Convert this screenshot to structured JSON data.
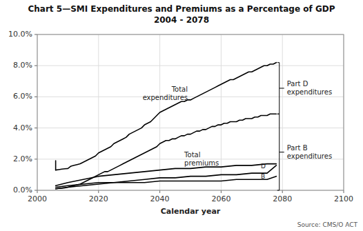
{
  "chart_data": {
    "type": "line",
    "title": "Chart 5—SMI Expenditures and Premiums as a Percentage of GDP",
    "subtitle": "2004 - 2078",
    "xlabel": "Calendar year",
    "source": "Source: CMS/O ACT",
    "xlim": [
      2000,
      2100
    ],
    "ylim": [
      0.0,
      0.1
    ],
    "xticks": [
      2000,
      2020,
      2040,
      2060,
      2080,
      2100
    ],
    "yticks": [
      {
        "value": 0.0,
        "label": "0.0%"
      },
      {
        "value": 0.02,
        "label": "2.0%"
      },
      {
        "value": 0.04,
        "label": "4.0%"
      },
      {
        "value": 0.06,
        "label": "6.0%"
      },
      {
        "value": 0.08,
        "label": "8.0%"
      },
      {
        "value": 0.1,
        "label": "10.0%"
      }
    ],
    "grid": true,
    "series": [
      {
        "color": "#000000",
        "x": [
          2006,
          2007,
          2008,
          2009,
          2010,
          2011,
          2012,
          2013,
          2014,
          2015,
          2016,
          2017,
          2018,
          2019,
          2020,
          2021,
          2022,
          2023,
          2024,
          2025,
          2026,
          2027,
          2028,
          2029,
          2030,
          2031,
          2032,
          2033,
          2034,
          2035,
          2036,
          2037,
          2038,
          2039,
          2040,
          2041,
          2042,
          2043,
          2044,
          2045,
          2046,
          2047,
          2048,
          2049,
          2050,
          2051,
          2052,
          2053,
          2054,
          2055,
          2056,
          2057,
          2058,
          2059,
          2060,
          2061,
          2062,
          2063,
          2064,
          2065,
          2066,
          2067,
          2068,
          2069,
          2070,
          2071,
          2072,
          2073,
          2074,
          2075,
          2076,
          2077,
          2078
        ],
        "values": [
          0.013,
          0.0133,
          0.0136,
          0.0138,
          0.014,
          0.0155,
          0.016,
          0.0165,
          0.017,
          0.018,
          0.019,
          0.02,
          0.021,
          0.022,
          0.024,
          0.025,
          0.026,
          0.027,
          0.028,
          0.03,
          0.031,
          0.032,
          0.033,
          0.034,
          0.036,
          0.037,
          0.038,
          0.039,
          0.04,
          0.042,
          0.043,
          0.044,
          0.046,
          0.048,
          0.05,
          0.051,
          0.052,
          0.053,
          0.054,
          0.055,
          0.056,
          0.057,
          0.057,
          0.058,
          0.058,
          0.059,
          0.06,
          0.061,
          0.062,
          0.063,
          0.064,
          0.065,
          0.066,
          0.067,
          0.068,
          0.069,
          0.07,
          0.071,
          0.071,
          0.072,
          0.073,
          0.074,
          0.075,
          0.076,
          0.076,
          0.077,
          0.078,
          0.079,
          0.08,
          0.08,
          0.081,
          0.081,
          0.082
        ]
      },
      {
        "color": "#000000",
        "x": [
          2006,
          2007,
          2008,
          2009,
          2010,
          2011,
          2012,
          2013,
          2014,
          2015,
          2016,
          2017,
          2018,
          2019,
          2020,
          2021,
          2022,
          2023,
          2024,
          2025,
          2026,
          2027,
          2028,
          2029,
          2030,
          2031,
          2032,
          2033,
          2034,
          2035,
          2036,
          2037,
          2038,
          2039,
          2040,
          2041,
          2042,
          2043,
          2044,
          2045,
          2046,
          2047,
          2048,
          2049,
          2050,
          2051,
          2052,
          2053,
          2054,
          2055,
          2056,
          2057,
          2058,
          2059,
          2060,
          2061,
          2062,
          2063,
          2064,
          2065,
          2066,
          2067,
          2068,
          2069,
          2070,
          2071,
          2072,
          2073,
          2074,
          2075,
          2076,
          2077,
          2078
        ],
        "values": [
          0.001,
          0.0012,
          0.0014,
          0.0016,
          0.002,
          0.0025,
          0.003,
          0.0035,
          0.004,
          0.005,
          0.006,
          0.007,
          0.008,
          0.009,
          0.01,
          0.011,
          0.012,
          0.012,
          0.013,
          0.014,
          0.015,
          0.016,
          0.017,
          0.018,
          0.019,
          0.02,
          0.021,
          0.022,
          0.023,
          0.024,
          0.025,
          0.026,
          0.027,
          0.028,
          0.03,
          0.031,
          0.032,
          0.032,
          0.033,
          0.033,
          0.034,
          0.035,
          0.035,
          0.036,
          0.036,
          0.037,
          0.038,
          0.038,
          0.039,
          0.039,
          0.04,
          0.041,
          0.041,
          0.042,
          0.042,
          0.043,
          0.043,
          0.044,
          0.044,
          0.044,
          0.045,
          0.045,
          0.046,
          0.046,
          0.046,
          0.047,
          0.047,
          0.048,
          0.048,
          0.048,
          0.049,
          0.049,
          0.049
        ]
      },
      {
        "color": "#000000",
        "x": [
          2006,
          2010,
          2015,
          2020,
          2025,
          2030,
          2035,
          2040,
          2045,
          2050,
          2055,
          2060,
          2065,
          2070,
          2075,
          2078
        ],
        "values": [
          0.003,
          0.005,
          0.007,
          0.009,
          0.01,
          0.011,
          0.012,
          0.013,
          0.014,
          0.014,
          0.015,
          0.015,
          0.016,
          0.016,
          0.017,
          0.017
        ]
      },
      {
        "color": "#000000",
        "x": [
          2006,
          2010,
          2015,
          2020,
          2025,
          2030,
          2035,
          2040,
          2045,
          2050,
          2055,
          2060,
          2065,
          2070,
          2075,
          2078
        ],
        "values": [
          0.001,
          0.002,
          0.003,
          0.004,
          0.005,
          0.006,
          0.007,
          0.008,
          0.008,
          0.009,
          0.009,
          0.01,
          0.01,
          0.011,
          0.011,
          0.016
        ]
      },
      {
        "color": "#000000",
        "x": [
          2006,
          2010,
          2015,
          2020,
          2025,
          2030,
          2035,
          2040,
          2045,
          2050,
          2055,
          2060,
          2065,
          2070,
          2075,
          2078
        ],
        "values": [
          0.002,
          0.003,
          0.004,
          0.005,
          0.005,
          0.005,
          0.005,
          0.006,
          0.006,
          0.006,
          0.006,
          0.006,
          0.007,
          0.007,
          0.007,
          0.009
        ]
      },
      {
        "color": "#000000",
        "x": [
          2006,
          2006
        ],
        "values": [
          0.013,
          0.019
        ]
      }
    ],
    "annotations": [
      {
        "text": "Total\nexpenditures",
        "x": 2050,
        "y": 0.062
      },
      {
        "text": "Total\npremiums",
        "x": 2048,
        "y": 0.02
      },
      {
        "text": "D",
        "x": 2073,
        "y": 0.0155
      },
      {
        "text": "B",
        "x": 2073,
        "y": 0.009
      }
    ],
    "brackets": [
      {
        "text": "Part D\nexpenditures",
        "x": 2079,
        "from": 0.049,
        "to": 0.082
      },
      {
        "text": "Part B\nexpenditures",
        "x": 2079,
        "from": 0.0,
        "to": 0.049
      }
    ]
  }
}
